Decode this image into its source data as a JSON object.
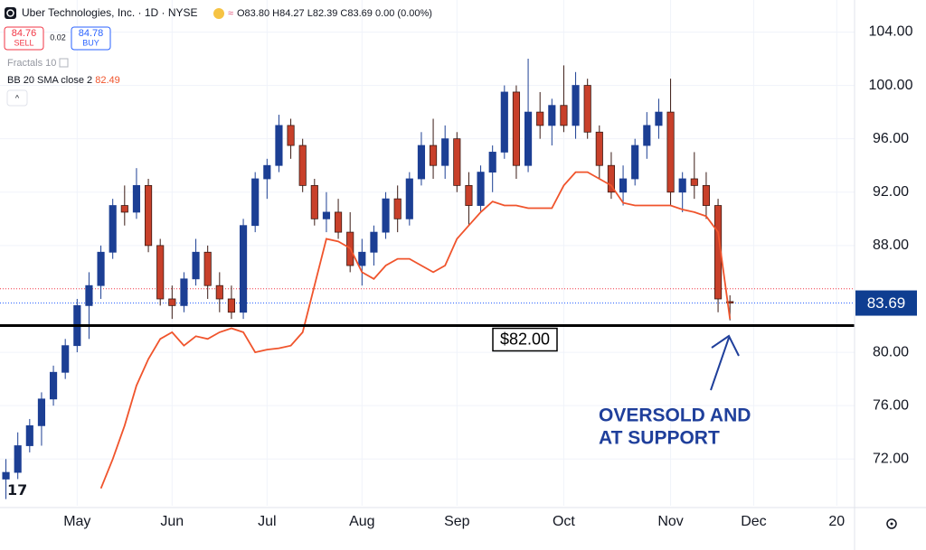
{
  "chart_data": {
    "type": "candlestick",
    "title": "Uber Technologies, Inc. · 1D · NYSE",
    "ohlc": [
      "O83.80",
      "H84.27",
      "L82.39",
      "C83.69",
      "0.00 (0.00%)"
    ],
    "quote": {
      "sell": 84.76,
      "sell_label": "SELL",
      "spread": 0.02,
      "buy": 84.78,
      "buy_label": "BUY"
    },
    "indicators": [
      "Fractals 10"
    ],
    "categories": [
      null,
      null,
      null,
      null,
      null,
      null,
      "May",
      null,
      null,
      null,
      null,
      null,
      null,
      null,
      "Jun",
      null,
      null,
      null,
      null,
      null,
      null,
      null,
      "Jul",
      null,
      null,
      null,
      null,
      null,
      null,
      null,
      "Aug",
      null,
      null,
      null,
      null,
      null,
      null,
      null,
      "Sep",
      null,
      null,
      null,
      null,
      null,
      null,
      null,
      null,
      "Oct",
      null,
      null,
      null,
      null,
      null,
      null,
      null,
      null,
      "Nov",
      null,
      null,
      null,
      null,
      null,
      null,
      "Dec",
      null,
      null,
      null,
      null,
      null,
      null,
      "20",
      null
    ],
    "open": [
      70.5,
      71,
      73,
      74.5,
      76.5,
      78.5,
      80.5,
      83.5,
      85,
      87.5,
      91,
      90.5,
      92.5,
      88,
      84,
      83.5,
      85.5,
      87.5,
      85,
      84,
      83,
      89.5,
      93,
      94,
      97,
      95.5,
      92.5,
      90,
      90.5,
      89,
      86.5,
      87.5,
      89,
      91.5,
      90,
      93,
      95.5,
      94,
      96,
      92.5,
      91,
      93.5,
      95,
      99.5,
      94,
      98,
      97,
      98.5,
      97,
      100,
      96.5,
      94,
      92,
      93,
      95.5,
      97,
      98,
      92,
      93,
      92.5,
      91,
      83.8,
      null,
      null,
      null,
      null,
      null,
      null,
      null,
      null,
      null,
      null
    ],
    "high": [
      72,
      74,
      75,
      77,
      79,
      81,
      84,
      86,
      88,
      91.5,
      92.5,
      93.8,
      93,
      88.5,
      85,
      86,
      88.5,
      88,
      86,
      85,
      90,
      93.5,
      94.5,
      97.8,
      97.5,
      96,
      93,
      92,
      91.5,
      90.5,
      88.5,
      89.5,
      92,
      92.5,
      93.5,
      96.5,
      97.5,
      97,
      96.5,
      93.5,
      94,
      95.5,
      100,
      100,
      102,
      99.5,
      99,
      101.5,
      101,
      100.5,
      97,
      95,
      94,
      96,
      98,
      99,
      100.5,
      93.5,
      95,
      93.5,
      91.5,
      84.27,
      null,
      null,
      null,
      null,
      null,
      null,
      null,
      null,
      null,
      null
    ],
    "low": [
      69,
      70.5,
      72.5,
      73,
      76,
      78,
      80,
      81,
      84,
      87,
      89.5,
      90,
      87.5,
      83.5,
      82.5,
      83,
      85,
      84,
      83,
      82.5,
      82.5,
      89,
      91.5,
      93.5,
      94.5,
      92,
      89.5,
      89,
      88.5,
      86,
      85,
      86.5,
      88.5,
      89,
      89.5,
      92.5,
      93,
      93,
      92,
      89.5,
      90.5,
      92,
      94.5,
      93,
      93.5,
      96,
      95.5,
      96.5,
      96,
      96,
      93,
      91.5,
      91,
      92.5,
      94.5,
      96,
      91,
      90.5,
      91.5,
      90,
      83,
      82.39,
      null,
      null,
      null,
      null,
      null,
      null,
      null,
      null,
      null,
      null
    ],
    "close": [
      71,
      73,
      74.5,
      76.5,
      78.5,
      80.5,
      83.5,
      85,
      87.5,
      91,
      90.5,
      92.5,
      88,
      84,
      83.5,
      85.5,
      87.5,
      85,
      84,
      83,
      89.5,
      93,
      94,
      97,
      95.5,
      92.5,
      90,
      90.5,
      89,
      86.5,
      87.5,
      89,
      91.5,
      90,
      93,
      95.5,
      94,
      96,
      92.5,
      91,
      93.5,
      95,
      99.5,
      94,
      98,
      97,
      98.5,
      97,
      100,
      96.5,
      94,
      92,
      93,
      95.5,
      97,
      98,
      92,
      93,
      92.5,
      91,
      84,
      83.69,
      null,
      null,
      null,
      null,
      null,
      null,
      null,
      null,
      null,
      null
    ],
    "up_color": "#1c3f94",
    "down_color": "#c8402a",
    "series": [
      {
        "name": "BB 20 SMA close 2",
        "color": "#f0542c",
        "values": [
          null,
          null,
          null,
          null,
          null,
          null,
          null,
          null,
          69.8,
          72,
          74.5,
          77.5,
          79.5,
          81,
          81.5,
          80.5,
          81.2,
          81,
          81.5,
          81.8,
          81.5,
          80,
          80.2,
          80.3,
          80.5,
          81.5,
          85,
          88.5,
          88.3,
          87.8,
          86,
          85.5,
          86.5,
          87,
          87,
          86.5,
          86,
          86.5,
          88.5,
          89.5,
          90.5,
          91.3,
          91,
          91,
          90.8,
          90.8,
          90.8,
          92.5,
          93.5,
          93.5,
          93,
          92.5,
          91.2,
          91,
          91,
          91,
          91,
          90.7,
          90.5,
          90.2,
          89,
          82.49,
          null,
          null,
          null,
          null,
          null,
          null,
          null,
          null,
          null,
          null
        ]
      }
    ],
    "ylim": [
      68.5,
      106.4
    ],
    "yticks": [
      {
        "value": 72,
        "label": "72.00"
      },
      {
        "value": 76,
        "label": "76.00"
      },
      {
        "value": 80,
        "label": "80.00"
      },
      {
        "value": 88,
        "label": "88.00"
      },
      {
        "value": 92,
        "label": "92.00"
      },
      {
        "value": 96,
        "label": "96.00"
      },
      {
        "value": 100,
        "label": "100.00"
      },
      {
        "value": 104,
        "label": "104.00"
      }
    ],
    "grid": true,
    "support_line": {
      "value": 82,
      "label": "$82.00"
    },
    "annotation": [
      "OVERSOLD AND",
      "AT SUPPORT"
    ]
  }
}
